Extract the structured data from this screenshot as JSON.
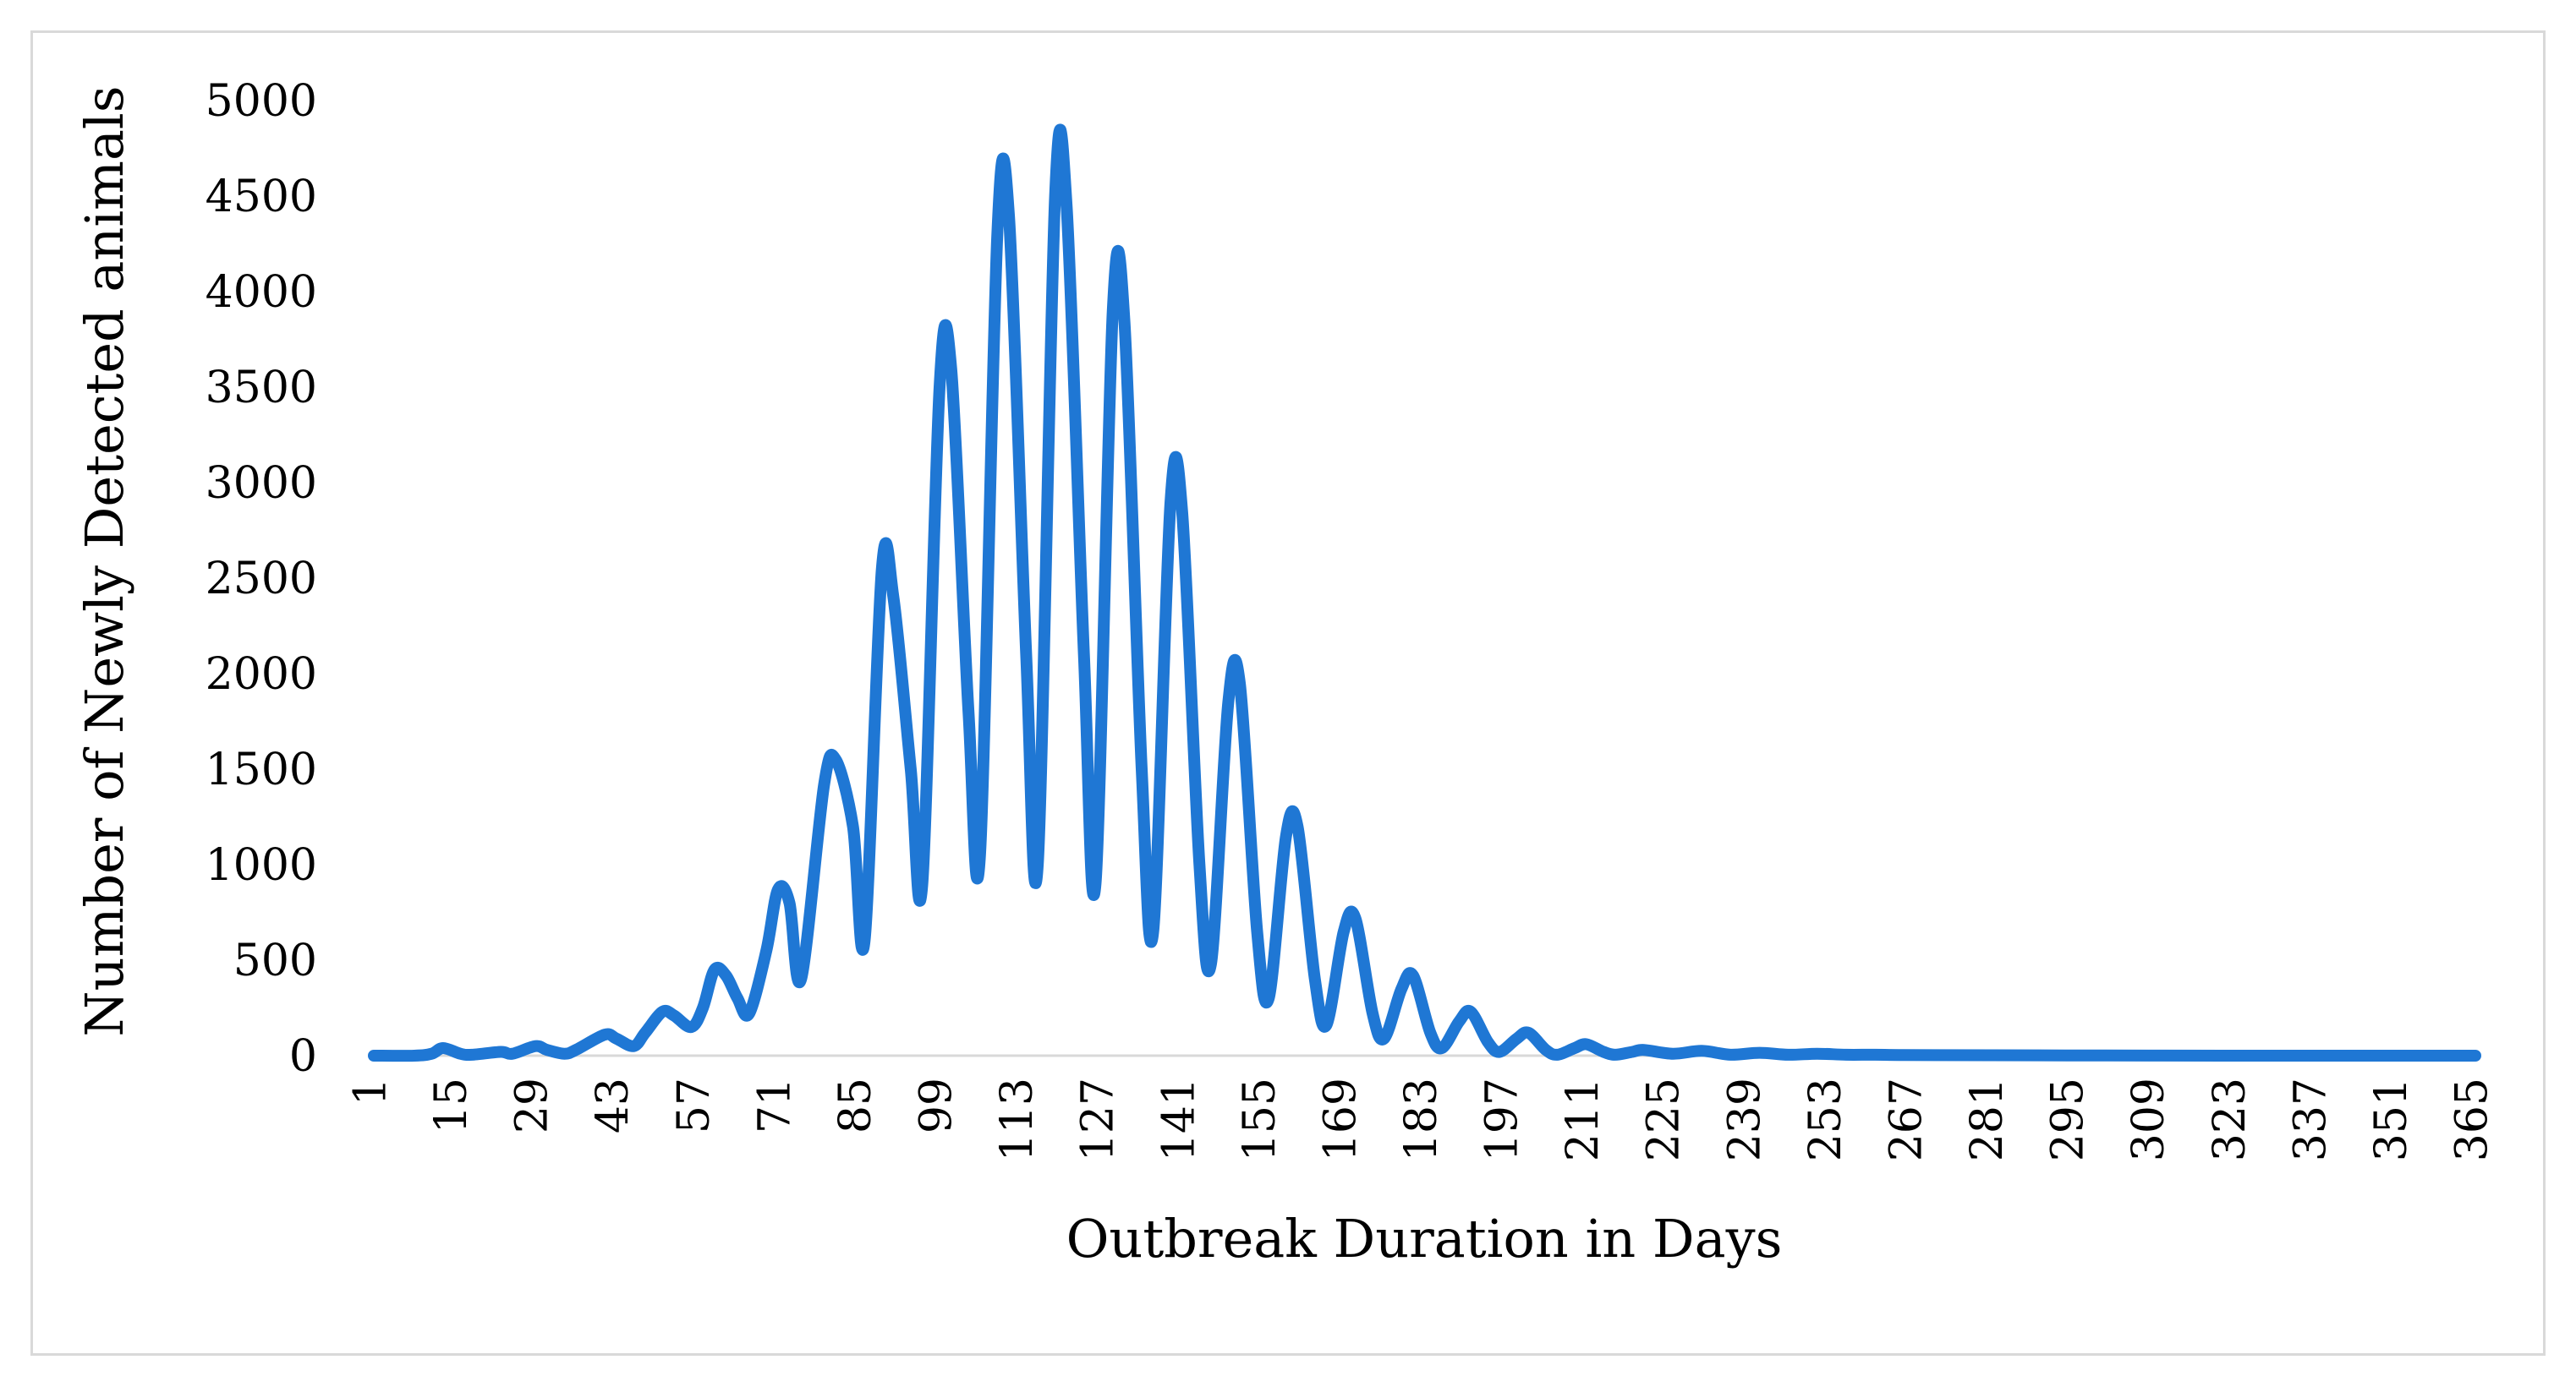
{
  "chart_data": {
    "type": "line",
    "title": "",
    "xlabel": "Outbreak Duration in Days",
    "ylabel": "Number of Newly Detected animals",
    "xlim": [
      1,
      365
    ],
    "ylim": [
      0,
      5000
    ],
    "grid": false,
    "legend": "none",
    "line_color": "#1f77d4",
    "y_ticks": [
      0,
      500,
      1000,
      1500,
      2000,
      2500,
      3000,
      3500,
      4000,
      4500,
      5000
    ],
    "x_ticks": [
      1,
      15,
      29,
      43,
      57,
      71,
      85,
      99,
      113,
      127,
      141,
      155,
      169,
      183,
      197,
      211,
      225,
      239,
      253,
      267,
      281,
      295,
      309,
      323,
      337,
      351,
      365
    ],
    "series": [
      {
        "name": "Newly Detected animals",
        "x": [
          1,
          8,
          11,
          13,
          16,
          18,
          23,
          25,
          29,
          31,
          34,
          36,
          41,
          43,
          46,
          48,
          51,
          53,
          56,
          58,
          60,
          62,
          64,
          66,
          69,
          71,
          73,
          75,
          79,
          81,
          84,
          86,
          89,
          91,
          94,
          96,
          99,
          101,
          104,
          106,
          109,
          111,
          114,
          116,
          119,
          121,
          124,
          126,
          129,
          131,
          134,
          136,
          139,
          141,
          144,
          146,
          149,
          151,
          154,
          156,
          159,
          161,
          164,
          166,
          169,
          171,
          174,
          176,
          179,
          181,
          184,
          186,
          189,
          191,
          194,
          196,
          199,
          201,
          204,
          206,
          209,
          211,
          214,
          216,
          219,
          221,
          226,
          231,
          236,
          241,
          246,
          251,
          256,
          261,
          266,
          281,
          301,
          321,
          341,
          365
        ],
        "values": [
          0,
          0,
          10,
          40,
          10,
          5,
          20,
          10,
          50,
          30,
          10,
          30,
          110,
          90,
          50,
          120,
          230,
          210,
          150,
          250,
          450,
          420,
          300,
          220,
          550,
          870,
          800,
          400,
          1420,
          1550,
          1200,
          600,
          2550,
          2400,
          1500,
          900,
          3500,
          3600,
          1800,
          1050,
          4300,
          4400,
          2100,
          1000,
          4500,
          4450,
          2100,
          900,
          3900,
          3850,
          1500,
          650,
          2900,
          2850,
          1000,
          480,
          1850,
          1950,
          650,
          300,
          1150,
          1200,
          400,
          160,
          650,
          720,
          220,
          90,
          350,
          420,
          120,
          40,
          180,
          230,
          70,
          20,
          90,
          120,
          30,
          5,
          40,
          60,
          20,
          5,
          20,
          30,
          10,
          25,
          5,
          15,
          5,
          10,
          5,
          5,
          3,
          2,
          1,
          0,
          0,
          0
        ]
      }
    ]
  }
}
